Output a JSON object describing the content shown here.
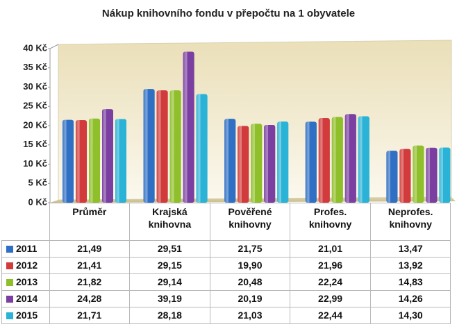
{
  "chart_data": {
    "type": "bar",
    "title": "Nákup knihovního fondu v přepočtu na 1 obyvatele",
    "categories": [
      "Průměr",
      "Krajská knihovna",
      "Pověřené knihovny",
      "Profes. knihovny",
      "Neprofes. knihovny"
    ],
    "series": [
      {
        "name": "2011",
        "color": "#2f6fc4",
        "values": [
          21.49,
          29.51,
          21.75,
          21.01,
          13.47
        ],
        "value_labels": [
          "21,49",
          "29,51",
          "21,75",
          "21,01",
          "13,47"
        ]
      },
      {
        "name": "2012",
        "color": "#d23b3b",
        "values": [
          21.41,
          29.15,
          19.9,
          21.96,
          13.92
        ],
        "value_labels": [
          "21,41",
          "29,15",
          "19,90",
          "21,96",
          "13,92"
        ]
      },
      {
        "name": "2013",
        "color": "#8fbf2a",
        "values": [
          21.82,
          29.14,
          20.48,
          22.24,
          14.83
        ],
        "value_labels": [
          "21,82",
          "29,14",
          "20,48",
          "22,24",
          "14,83"
        ]
      },
      {
        "name": "2014",
        "color": "#7a3fa0",
        "values": [
          24.28,
          39.19,
          20.19,
          22.99,
          14.26
        ],
        "value_labels": [
          "24,28",
          "39,19",
          "20,19",
          "22,99",
          "14,26"
        ]
      },
      {
        "name": "2015",
        "color": "#2ab3d6",
        "values": [
          21.71,
          28.18,
          21.03,
          22.44,
          14.3
        ],
        "value_labels": [
          "21,71",
          "28,18",
          "21,03",
          "22,44",
          "14,30"
        ]
      }
    ],
    "ylim": [
      0,
      40
    ],
    "yticks": [
      {
        "value": 0,
        "label": "0 Kč"
      },
      {
        "value": 5,
        "label": "5 Kč"
      },
      {
        "value": 10,
        "label": "10 Kč"
      },
      {
        "value": 15,
        "label": "15 Kč"
      },
      {
        "value": 20,
        "label": "20 Kč"
      },
      {
        "value": 25,
        "label": "25 Kč"
      },
      {
        "value": 30,
        "label": "30 Kč"
      },
      {
        "value": 35,
        "label": "35 Kč"
      },
      {
        "value": 40,
        "label": "40 Kč"
      }
    ],
    "grid": false
  }
}
